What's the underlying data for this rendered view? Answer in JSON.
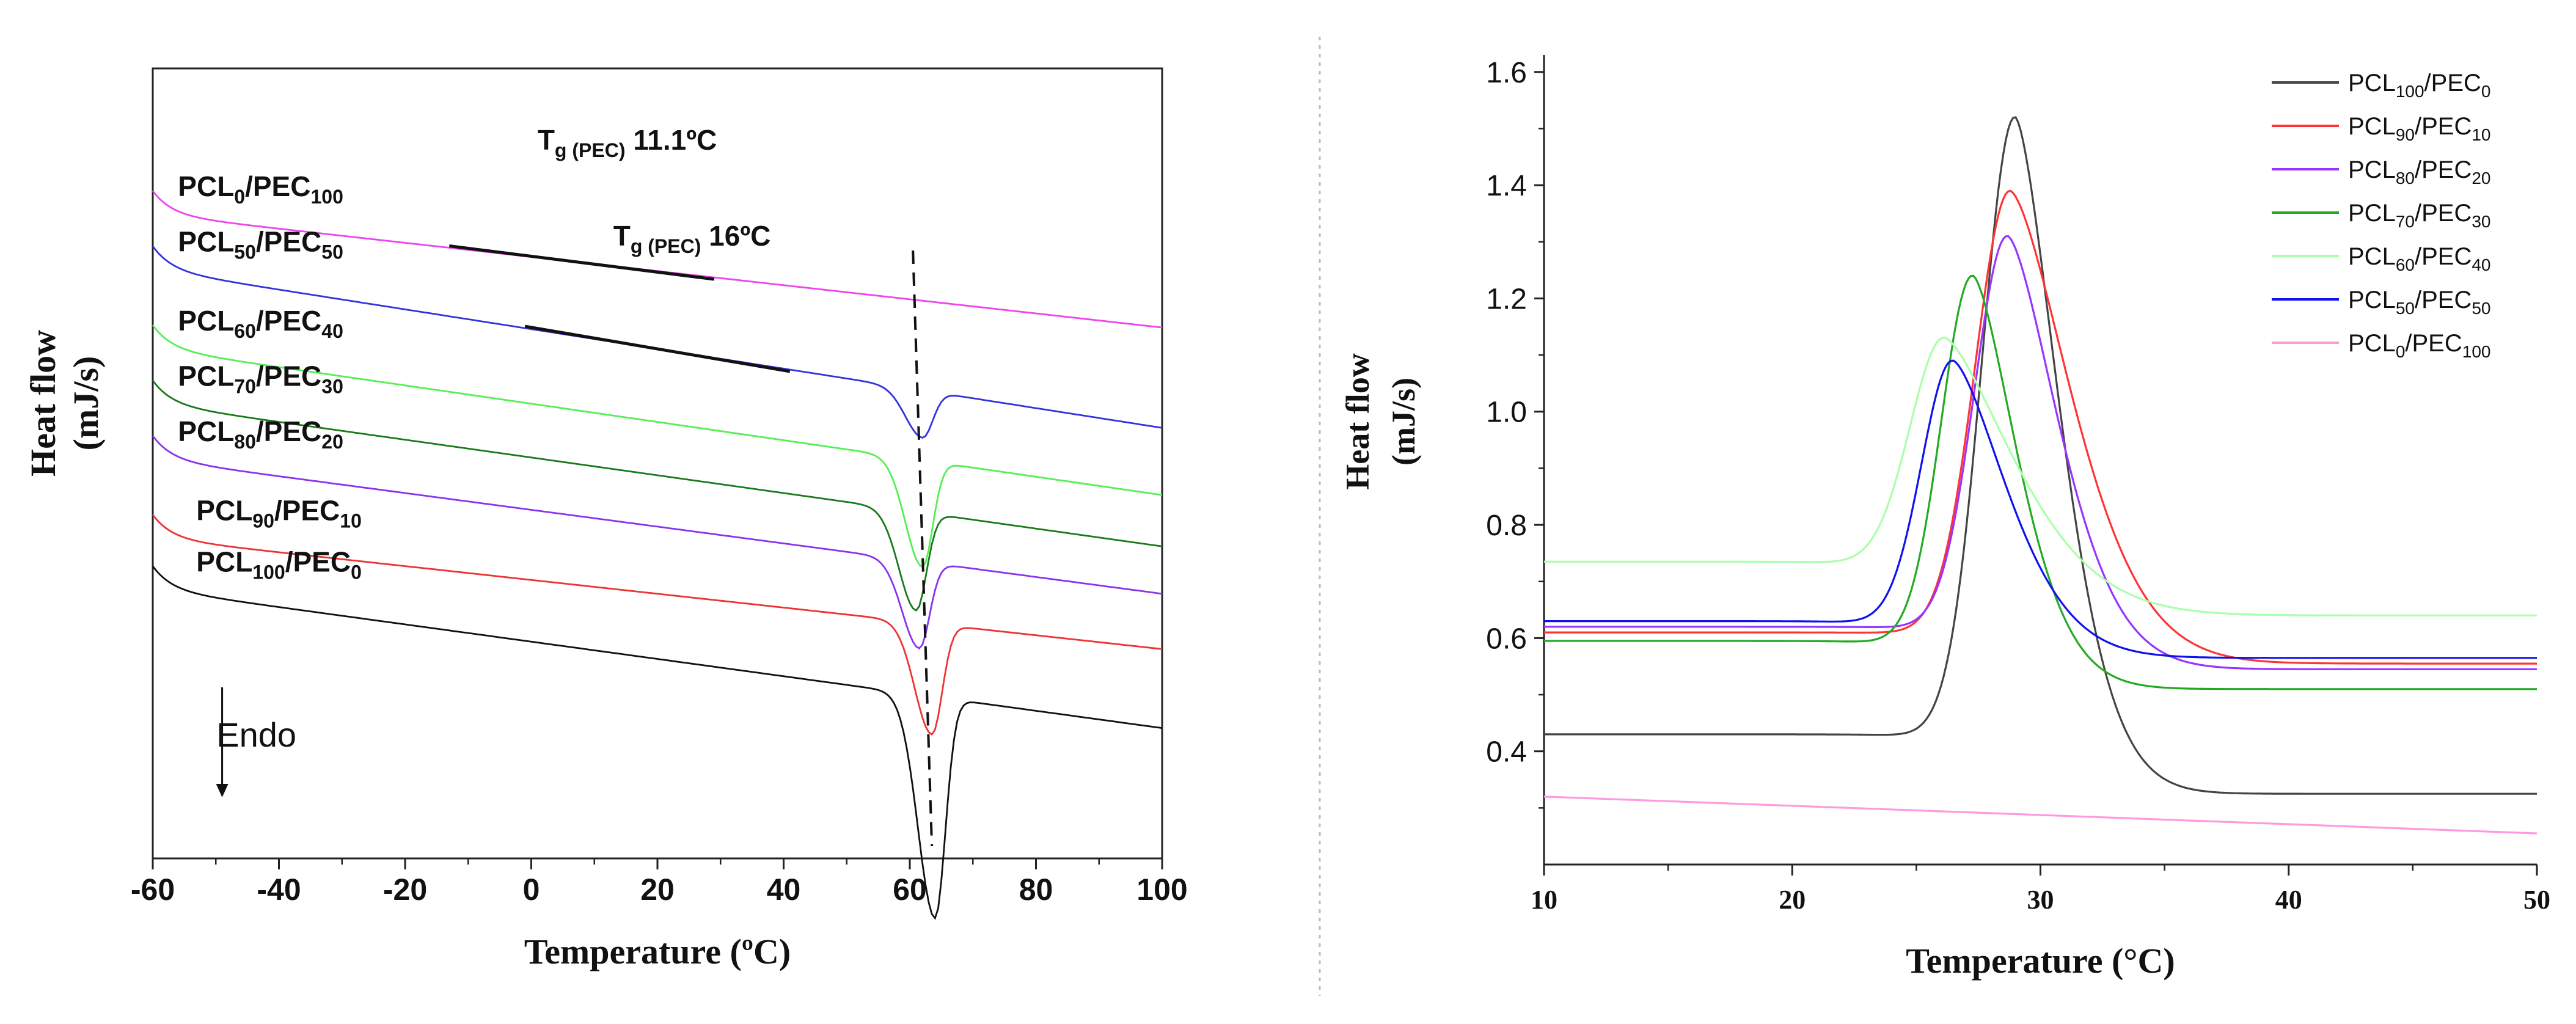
{
  "chart_data": [
    {
      "type": "line",
      "title": "",
      "xlabel": "Temperature (ºC)",
      "ylabel": "Heat flow",
      "ylabel_unit": "(mJ/s)",
      "xlim": [
        -60,
        100
      ],
      "xticks": [
        "-60",
        "-40",
        "-20",
        "0",
        "20",
        "40",
        "60",
        "80",
        "100"
      ],
      "yticks_shown": false,
      "endo_label": "Endo",
      "series": [
        {
          "name": "PCL0/PEC100",
          "label_base": "PCL",
          "label_sub1": "0",
          "label_mid": "/PEC",
          "label_sub2": "100",
          "color": "#ee44ee",
          "baseline_start": 0.815,
          "baseline_end": 0.672,
          "dip_center": null,
          "dip_depth": 0
        },
        {
          "name": "PCL50/PEC50",
          "label_base": "PCL",
          "label_sub1": "50",
          "label_mid": "/PEC",
          "label_sub2": "50",
          "color": "#3333dd",
          "baseline_start": 0.745,
          "baseline_end": 0.545,
          "dip_center": 62,
          "dip_depth": 0.06
        },
        {
          "name": "PCL60/PEC40",
          "label_base": "PCL",
          "label_sub1": "60",
          "label_mid": "/PEC",
          "label_sub2": "40",
          "color": "#55ee55",
          "baseline_start": 0.645,
          "baseline_end": 0.46,
          "dip_center": 62,
          "dip_depth": 0.135
        },
        {
          "name": "PCL70/PEC30",
          "label_base": "PCL",
          "label_sub1": "70",
          "label_mid": "/PEC",
          "label_sub2": "30",
          "color": "#1a7a1a",
          "baseline_start": 0.575,
          "baseline_end": 0.395,
          "dip_center": 61,
          "dip_depth": 0.125
        },
        {
          "name": "PCL80/PEC20",
          "label_base": "PCL",
          "label_sub1": "80",
          "label_mid": "/PEC",
          "label_sub2": "20",
          "color": "#8833ee",
          "baseline_start": 0.505,
          "baseline_end": 0.335,
          "dip_center": 61.5,
          "dip_depth": 0.11
        },
        {
          "name": "PCL90/PEC10",
          "label_base": "PCL",
          "label_sub1": "90",
          "label_mid": "/PEC",
          "label_sub2": "10",
          "color": "#ee3333",
          "baseline_start": 0.405,
          "baseline_end": 0.265,
          "dip_center": 63.5,
          "dip_depth": 0.14
        },
        {
          "name": "PCL100/PEC0",
          "label_base": "PCL",
          "label_sub1": "100",
          "label_mid": "/PEC",
          "label_sub2": "0",
          "color": "#111111",
          "baseline_start": 0.34,
          "baseline_end": 0.165,
          "dip_center": 64,
          "dip_depth": 0.28
        }
      ],
      "annotations": [
        {
          "name": "Tg PEC 11.1",
          "main": "T",
          "sub": "g (PEC)",
          "value": "11.1ºC",
          "x_start": -13,
          "x_end": 29
        },
        {
          "name": "Tg PEC 16",
          "main": "T",
          "sub": "g (PEC)",
          "value": "16ºC",
          "x_start": -1,
          "x_end": 41
        }
      ],
      "melting_guide_x": [
        60.5,
        63.5
      ]
    },
    {
      "type": "line",
      "title": "",
      "xlabel": "Temperature (°C)",
      "ylabel": "Heat flow",
      "ylabel_unit": "(mJ/s)",
      "xlim": [
        10,
        50
      ],
      "ylim": [
        0.2,
        1.63
      ],
      "xticks": [
        "10",
        "20",
        "30",
        "40",
        "50"
      ],
      "yticks": [
        "0.4",
        "0.6",
        "0.8",
        "1.0",
        "1.2",
        "1.4",
        "1.6"
      ],
      "legend_position": "top-right",
      "series": [
        {
          "name": "PCL100/PEC0",
          "label_base": "PCL",
          "label_sub1": "100",
          "label_mid": "/PEC",
          "label_sub2": "0",
          "color": "#444444",
          "base_left": 0.43,
          "base_right": 0.325,
          "peak_x": 29.0,
          "peak_y": 1.52,
          "width_left": 1.9,
          "width_right": 2.6
        },
        {
          "name": "PCL90/PEC10",
          "label_base": "PCL",
          "label_sub1": "90",
          "label_mid": "/PEC",
          "label_sub2": "10",
          "color": "#ff3333",
          "base_left": 0.61,
          "base_right": 0.555,
          "peak_x": 28.8,
          "peak_y": 1.39,
          "width_left": 2.0,
          "width_right": 3.6
        },
        {
          "name": "PCL80/PEC20",
          "label_base": "PCL",
          "label_sub1": "80",
          "label_mid": "/PEC",
          "label_sub2": "20",
          "color": "#9933ff",
          "base_left": 0.62,
          "base_right": 0.545,
          "peak_x": 28.7,
          "peak_y": 1.31,
          "width_left": 1.9,
          "width_right": 3.0
        },
        {
          "name": "PCL70/PEC30",
          "label_base": "PCL",
          "label_sub1": "70",
          "label_mid": "/PEC",
          "label_sub2": "30",
          "color": "#22aa22",
          "base_left": 0.595,
          "base_right": 0.51,
          "peak_x": 27.3,
          "peak_y": 1.24,
          "width_left": 1.8,
          "width_right": 2.6
        },
        {
          "name": "PCL60/PEC40",
          "label_base": "PCL",
          "label_sub1": "60",
          "label_mid": "/PEC",
          "label_sub2": "40",
          "color": "#aaffaa",
          "base_left": 0.735,
          "base_right": 0.64,
          "peak_x": 26.2,
          "peak_y": 1.13,
          "width_left": 2.0,
          "width_right": 4.2
        },
        {
          "name": "PCL50/PEC50",
          "label_base": "PCL",
          "label_sub1": "50",
          "label_mid": "/PEC",
          "label_sub2": "50",
          "color": "#1111ee",
          "base_left": 0.63,
          "base_right": 0.565,
          "peak_x": 26.5,
          "peak_y": 1.09,
          "width_left": 1.8,
          "width_right": 3.2
        },
        {
          "name": "PCL0/PEC100",
          "label_base": "PCL",
          "label_sub1": "0",
          "label_mid": "/PEC",
          "label_sub2": "100",
          "color": "#ff99dd",
          "base_left": 0.32,
          "base_right": 0.255,
          "peak_x": null,
          "peak_y": null,
          "width_left": 0,
          "width_right": 0
        }
      ]
    }
  ]
}
